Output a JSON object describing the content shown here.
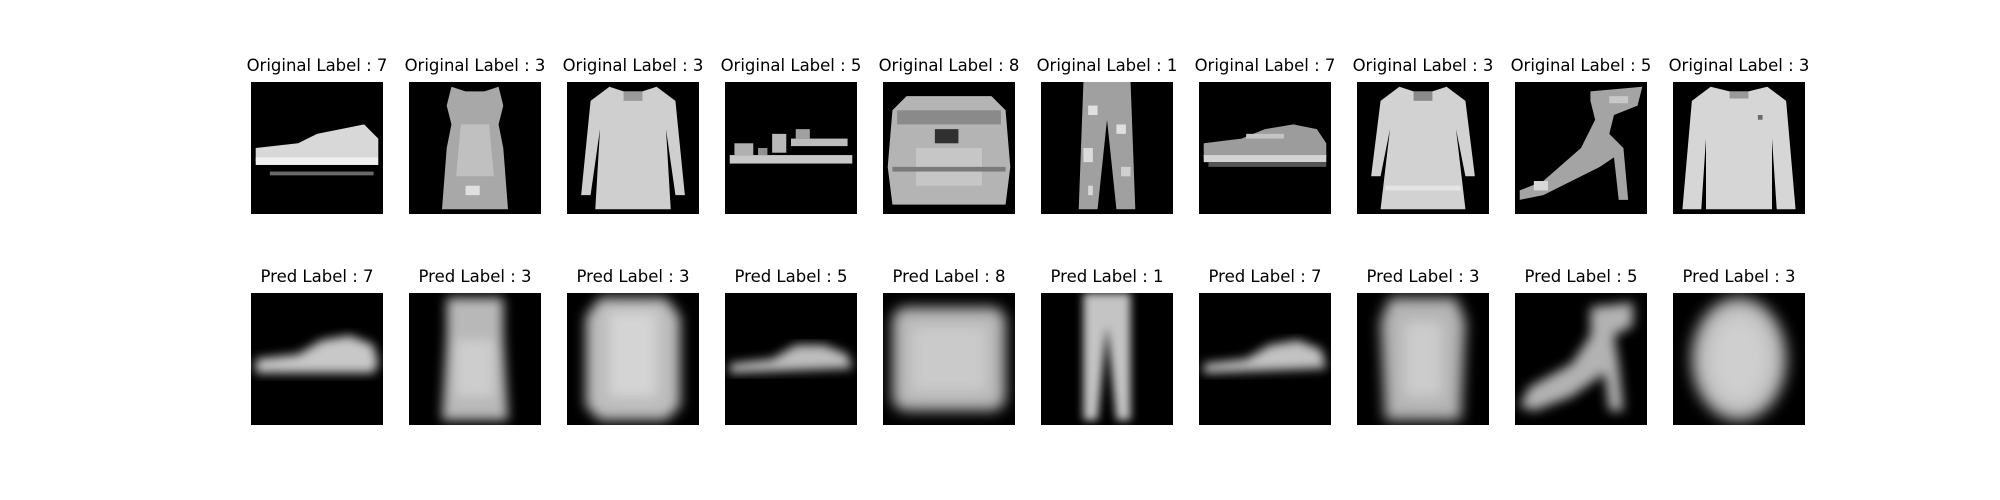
{
  "rows": [
    {
      "kind": "original",
      "items": [
        {
          "title": "Original Label : 7",
          "icon": "sneaker-image",
          "blurred": false
        },
        {
          "title": "Original Label : 3",
          "icon": "dress-image",
          "blurred": false
        },
        {
          "title": "Original Label : 3",
          "icon": "dress-image",
          "blurred": false
        },
        {
          "title": "Original Label : 5",
          "icon": "sandal-image",
          "blurred": false
        },
        {
          "title": "Original Label : 8",
          "icon": "bag-image",
          "blurred": false
        },
        {
          "title": "Original Label : 1",
          "icon": "trouser-image",
          "blurred": false
        },
        {
          "title": "Original Label : 7",
          "icon": "sneaker-image",
          "blurred": false
        },
        {
          "title": "Original Label : 3",
          "icon": "dress-image",
          "blurred": false
        },
        {
          "title": "Original Label : 5",
          "icon": "heel-sandal-image",
          "blurred": false
        },
        {
          "title": "Original Label : 3",
          "icon": "dress-image",
          "blurred": false
        }
      ]
    },
    {
      "kind": "pred",
      "items": [
        {
          "title": "Pred Label : 7",
          "icon": "sneaker-image",
          "blurred": true
        },
        {
          "title": "Pred Label : 3",
          "icon": "dress-image",
          "blurred": true
        },
        {
          "title": "Pred Label : 3",
          "icon": "dress-image",
          "blurred": true
        },
        {
          "title": "Pred Label : 5",
          "icon": "sandal-image",
          "blurred": true
        },
        {
          "title": "Pred Label : 8",
          "icon": "bag-image",
          "blurred": true
        },
        {
          "title": "Pred Label : 1",
          "icon": "trouser-image",
          "blurred": true
        },
        {
          "title": "Pred Label : 7",
          "icon": "sneaker-image",
          "blurred": true
        },
        {
          "title": "Pred Label : 3",
          "icon": "dress-image",
          "blurred": true
        },
        {
          "title": "Pred Label : 5",
          "icon": "heel-sandal-image",
          "blurred": true
        },
        {
          "title": "Pred Label : 3",
          "icon": "dress-image",
          "blurred": true
        }
      ]
    }
  ],
  "colors": {
    "background": "#ffffff",
    "image_background": "#000000",
    "garment_light": "#d8d8d8",
    "garment_mid": "#a8a8a8",
    "text": "#000000"
  }
}
